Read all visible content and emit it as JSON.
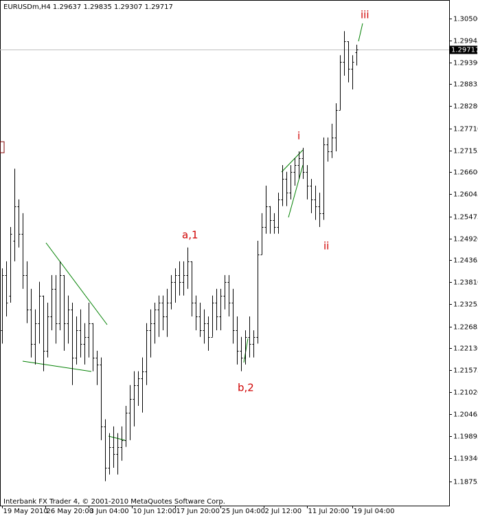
{
  "chart_data": {
    "type": "ohlc",
    "title": "EURUSDm,H4  1.29637 1.29835 1.29307 1.29717",
    "footer": "Interbank FX Trader 4, © 2001-2010 MetaQuotes Software Corp.",
    "color": "#000000",
    "open": [
      1.2259,
      1.2399,
      1.2347,
      1.2486,
      1.2574,
      1.2504,
      1.2399,
      1.2312,
      1.2225,
      1.2277,
      1.2347,
      1.2207,
      1.2294,
      1.2364,
      1.2277,
      1.2399,
      1.2277,
      1.2312,
      1.219,
      1.2259,
      1.2225,
      1.2242,
      1.2277,
      1.219,
      1.2172,
      1.2015,
      1.191,
      1.1963,
      1.1945,
      1.1963,
      1.198,
      1.205,
      1.2085,
      1.212,
      1.2137,
      1.2155,
      1.2259,
      1.2277,
      1.2312,
      1.2329,
      1.2294,
      1.2329,
      1.2382,
      1.2399,
      1.2382,
      1.2399,
      1.2434,
      1.2329,
      1.2294,
      1.2259,
      1.2277,
      1.2242,
      1.2329,
      1.2294,
      1.2347,
      1.2382,
      1.2329,
      1.2259,
      1.2207,
      1.219,
      1.2242,
      1.2225,
      1.2242,
      1.2451,
      1.2521,
      1.2574,
      1.2539,
      1.2521,
      1.2591,
      1.2643,
      1.2608,
      1.2661,
      1.2678,
      1.2696,
      1.2661,
      1.2626,
      1.2591,
      1.2574,
      1.2556,
      1.2731,
      1.2713,
      1.2748,
      1.2818,
      1.294,
      1.2992,
      1.2923,
      1.29637
    ],
    "high": [
      1.2416,
      1.2434,
      1.2521,
      1.2669,
      1.2591,
      1.2556,
      1.2434,
      1.2364,
      1.2312,
      1.2382,
      1.2347,
      1.2329,
      1.2399,
      1.2399,
      1.2434,
      1.2399,
      1.2347,
      1.2329,
      1.2294,
      1.2312,
      1.2277,
      1.2329,
      1.2277,
      1.2207,
      1.219,
      1.2033,
      1.1998,
      1.2015,
      1.1998,
      1.2015,
      1.2067,
      1.212,
      1.2155,
      1.2155,
      1.219,
      1.2277,
      1.2312,
      1.2329,
      1.2347,
      1.2347,
      1.2364,
      1.2399,
      1.2416,
      1.2434,
      1.2434,
      1.2469,
      1.2434,
      1.2347,
      1.2329,
      1.2312,
      1.2294,
      1.2347,
      1.2364,
      1.2364,
      1.2399,
      1.2399,
      1.2364,
      1.2294,
      1.2242,
      1.2259,
      1.2294,
      1.2259,
      1.2486,
      1.2556,
      1.2626,
      1.2574,
      1.2556,
      1.2608,
      1.2678,
      1.2661,
      1.2678,
      1.2696,
      1.2713,
      1.2722,
      1.2678,
      1.2643,
      1.2626,
      1.2608,
      1.2748,
      1.2748,
      1.2783,
      1.2835,
      1.2957,
      1.3018,
      1.2992,
      1.2957,
      1.29835
    ],
    "low": [
      1.2225,
      1.2294,
      1.2329,
      1.2434,
      1.2469,
      1.2364,
      1.2277,
      1.219,
      1.2172,
      1.2225,
      1.2155,
      1.219,
      1.2259,
      1.2225,
      1.2259,
      1.2207,
      1.2225,
      1.212,
      1.2172,
      1.219,
      1.2172,
      1.219,
      1.2155,
      1.212,
      1.198,
      1.1876,
      1.1893,
      1.191,
      1.1893,
      1.1928,
      1.1963,
      1.198,
      1.2015,
      1.2067,
      1.205,
      1.212,
      1.219,
      1.2225,
      1.2242,
      1.2259,
      1.2242,
      1.2312,
      1.2329,
      1.2347,
      1.2347,
      1.2364,
      1.2294,
      1.2259,
      1.2242,
      1.2225,
      1.2207,
      1.2242,
      1.2259,
      1.2259,
      1.2312,
      1.2294,
      1.2225,
      1.2172,
      1.2155,
      1.2172,
      1.219,
      1.219,
      1.2225,
      1.2451,
      1.2504,
      1.2504,
      1.2504,
      1.2504,
      1.2574,
      1.2574,
      1.2591,
      1.2626,
      1.2643,
      1.2643,
      1.2591,
      1.2556,
      1.2539,
      1.2521,
      1.2539,
      1.2687,
      1.2696,
      1.2713,
      1.2818,
      1.2905,
      1.2888,
      1.287,
      1.29307
    ],
    "close": [
      1.2399,
      1.2329,
      1.2504,
      1.2574,
      1.2504,
      1.2399,
      1.2312,
      1.2225,
      1.2277,
      1.2347,
      1.2207,
      1.2294,
      1.2364,
      1.2277,
      1.2399,
      1.2277,
      1.2312,
      1.219,
      1.2259,
      1.2225,
      1.2242,
      1.2277,
      1.219,
      1.2172,
      1.2015,
      1.191,
      1.1963,
      1.1945,
      1.1963,
      1.198,
      1.205,
      1.2085,
      1.212,
      1.2137,
      1.2155,
      1.2259,
      1.2277,
      1.2312,
      1.2329,
      1.2294,
      1.2329,
      1.2382,
      1.2399,
      1.2382,
      1.2399,
      1.2434,
      1.2329,
      1.2294,
      1.2259,
      1.2277,
      1.2242,
      1.2329,
      1.2294,
      1.2347,
      1.2382,
      1.2329,
      1.2259,
      1.2207,
      1.219,
      1.2242,
      1.2225,
      1.2242,
      1.2451,
      1.2521,
      1.2574,
      1.2539,
      1.2521,
      1.2591,
      1.2643,
      1.2608,
      1.2661,
      1.2678,
      1.2696,
      1.2661,
      1.2626,
      1.2591,
      1.2574,
      1.2556,
      1.2731,
      1.2713,
      1.2748,
      1.2818,
      1.294,
      1.2992,
      1.2923,
      1.294,
      1.29717
    ],
    "current_price": {
      "value": 1.29717,
      "label": "1.29717"
    },
    "xlim": [
      -0.5,
      108.5
    ],
    "xticks": [
      {
        "value": 0,
        "label": "19 May 2010"
      },
      {
        "value": 10.5,
        "label": "26 May 20:00"
      },
      {
        "value": 21,
        "label": "3 Jun 04:00"
      },
      {
        "value": 31.5,
        "label": "10 Jun 12:00"
      },
      {
        "value": 42,
        "label": "17 Jun 20:00"
      },
      {
        "value": 53,
        "label": "25 Jun 04:00"
      },
      {
        "value": 63.5,
        "label": "2 Jul 12:00"
      },
      {
        "value": 74,
        "label": "11 Jul 20:00"
      },
      {
        "value": 85,
        "label": "19 Jul 04:00"
      }
    ],
    "ylim": [
      1.1814,
      1.3097
    ],
    "yticks": [
      {
        "value": 1.305,
        "label": "1.30500"
      },
      {
        "value": 1.29945,
        "label": "1.29945"
      },
      {
        "value": 1.2939,
        "label": "1.29390"
      },
      {
        "value": 1.28835,
        "label": "1.28835"
      },
      {
        "value": 1.2828,
        "label": "1.28280"
      },
      {
        "value": 1.2771,
        "label": "1.27710"
      },
      {
        "value": 1.27155,
        "label": "1.27155"
      },
      {
        "value": 1.266,
        "label": "1.26600"
      },
      {
        "value": 1.26045,
        "label": "1.26045"
      },
      {
        "value": 1.25475,
        "label": "1.25475"
      },
      {
        "value": 1.2492,
        "label": "1.24920"
      },
      {
        "value": 1.24365,
        "label": "1.24365"
      },
      {
        "value": 1.2381,
        "label": "1.23810"
      },
      {
        "value": 1.23255,
        "label": "1.23255"
      },
      {
        "value": 1.22685,
        "label": "1.22685"
      },
      {
        "value": 1.2213,
        "label": "1.22130"
      },
      {
        "value": 1.21575,
        "label": "1.21575"
      },
      {
        "value": 1.2102,
        "label": "1.21020"
      },
      {
        "value": 1.20465,
        "label": "1.20465"
      },
      {
        "value": 1.19895,
        "label": "1.19895"
      },
      {
        "value": 1.1934,
        "label": "1.19340"
      },
      {
        "value": 1.18755,
        "label": "1.18755"
      }
    ],
    "annotations": [
      "a,1",
      "b,2",
      "i",
      "ii",
      "iii"
    ]
  }
}
